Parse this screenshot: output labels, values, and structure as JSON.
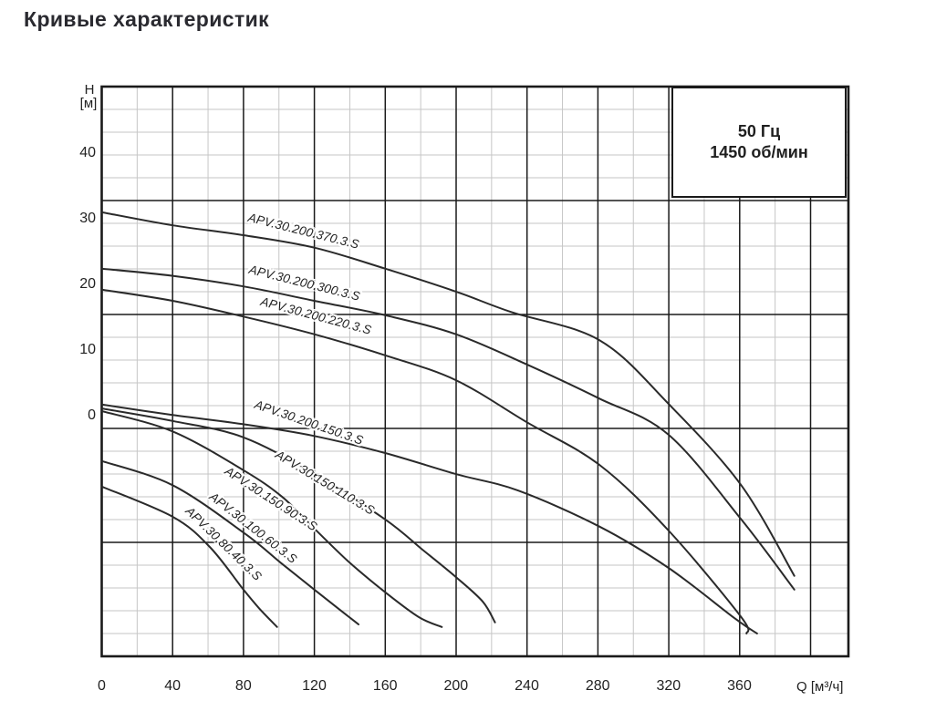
{
  "page_title": "Кривые характеристик",
  "info_box": {
    "line1": "50 Гц",
    "line2": "1450 об/мин"
  },
  "chart_data": {
    "type": "line",
    "title": "Кривые характеристик",
    "xlabel": "Q [м³/ч]",
    "ylabel": "H [м]",
    "ylabel_symbol": "H",
    "ylabel_unit": "[м]",
    "x_ticks": [
      0,
      40,
      80,
      120,
      160,
      200,
      240,
      280,
      320,
      360
    ],
    "y_ticks": [
      40,
      30,
      20,
      10,
      0
    ],
    "xlim": [
      0,
      421
    ],
    "ylim": [
      -36.8,
      50.1
    ],
    "grid": "major+minor",
    "legend_position": "inline-curve-labels",
    "annotation": "50 Гц 1450 об/мин",
    "colors": {
      "curve": "#2a2a2a",
      "grid_minor": "#c6c6c6",
      "grid_major": "#1a1a1a",
      "background": "#ffffff"
    },
    "series": [
      {
        "name": "APV.30.200.370.3.S",
        "points": [
          [
            0,
            31.0
          ],
          [
            40,
            29.0
          ],
          [
            80,
            27.5
          ],
          [
            120,
            25.6
          ],
          [
            160,
            22.4
          ],
          [
            200,
            18.9
          ],
          [
            231,
            15.8
          ],
          [
            281,
            11.5
          ],
          [
            320,
            1.8
          ],
          [
            361,
            -10.6
          ],
          [
            391,
            -24.4
          ]
        ]
      },
      {
        "name": "APV.30.200.300.3.S",
        "points": [
          [
            0,
            22.4
          ],
          [
            40,
            21.3
          ],
          [
            80,
            19.7
          ],
          [
            120,
            17.5
          ],
          [
            160,
            15.3
          ],
          [
            200,
            12.4
          ],
          [
            240,
            7.8
          ],
          [
            281,
            2.6
          ],
          [
            320,
            -2.9
          ],
          [
            361,
            -15.8
          ],
          [
            391,
            -26.5
          ]
        ]
      },
      {
        "name": "APV.30.200.220.3.S",
        "points": [
          [
            0,
            19.2
          ],
          [
            40,
            17.5
          ],
          [
            80,
            15.1
          ],
          [
            120,
            12.4
          ],
          [
            160,
            9.2
          ],
          [
            200,
            5.4
          ],
          [
            240,
            -1.0
          ],
          [
            281,
            -7.5
          ],
          [
            320,
            -17.5
          ],
          [
            361,
            -30.7
          ],
          [
            364,
            -33.2
          ]
        ]
      },
      {
        "name": "APV.30.200.150.3.S",
        "points": [
          [
            0,
            1.7
          ],
          [
            40,
            0.1
          ],
          [
            80,
            -1.3
          ],
          [
            120,
            -3.1
          ],
          [
            160,
            -5.7
          ],
          [
            200,
            -8.9
          ],
          [
            235,
            -11.4
          ],
          [
            281,
            -16.9
          ],
          [
            320,
            -23.2
          ],
          [
            357,
            -30.8
          ],
          [
            370,
            -33.2
          ]
        ]
      },
      {
        "name": "APV.30.150.110.3.S",
        "points": [
          [
            0,
            1.1
          ],
          [
            40,
            -0.8
          ],
          [
            80,
            -3.3
          ],
          [
            120,
            -8.9
          ],
          [
            160,
            -15.8
          ],
          [
            181,
            -20.4
          ],
          [
            200,
            -24.6
          ],
          [
            215,
            -28.3
          ],
          [
            222,
            -31.5
          ]
        ]
      },
      {
        "name": "APV.30.150.90.3.S",
        "points": [
          [
            0,
            0.7
          ],
          [
            40,
            -2.4
          ],
          [
            80,
            -8.3
          ],
          [
            102,
            -12.4
          ],
          [
            120,
            -17.2
          ],
          [
            140,
            -22.4
          ],
          [
            160,
            -26.9
          ],
          [
            179,
            -30.7
          ],
          [
            192,
            -32.2
          ]
        ]
      },
      {
        "name": "APV.30.100.60.3.S",
        "points": [
          [
            0,
            -6.9
          ],
          [
            40,
            -10.6
          ],
          [
            80,
            -17.8
          ],
          [
            101,
            -22.4
          ],
          [
            120,
            -26.5
          ],
          [
            135,
            -29.7
          ],
          [
            145,
            -31.8
          ]
        ]
      },
      {
        "name": "APV.30.80.40.3.S",
        "points": [
          [
            0,
            -10.8
          ],
          [
            40,
            -15.4
          ],
          [
            61,
            -20.0
          ],
          [
            80,
            -26.5
          ],
          [
            89,
            -29.4
          ],
          [
            99,
            -32.2
          ]
        ]
      }
    ]
  }
}
